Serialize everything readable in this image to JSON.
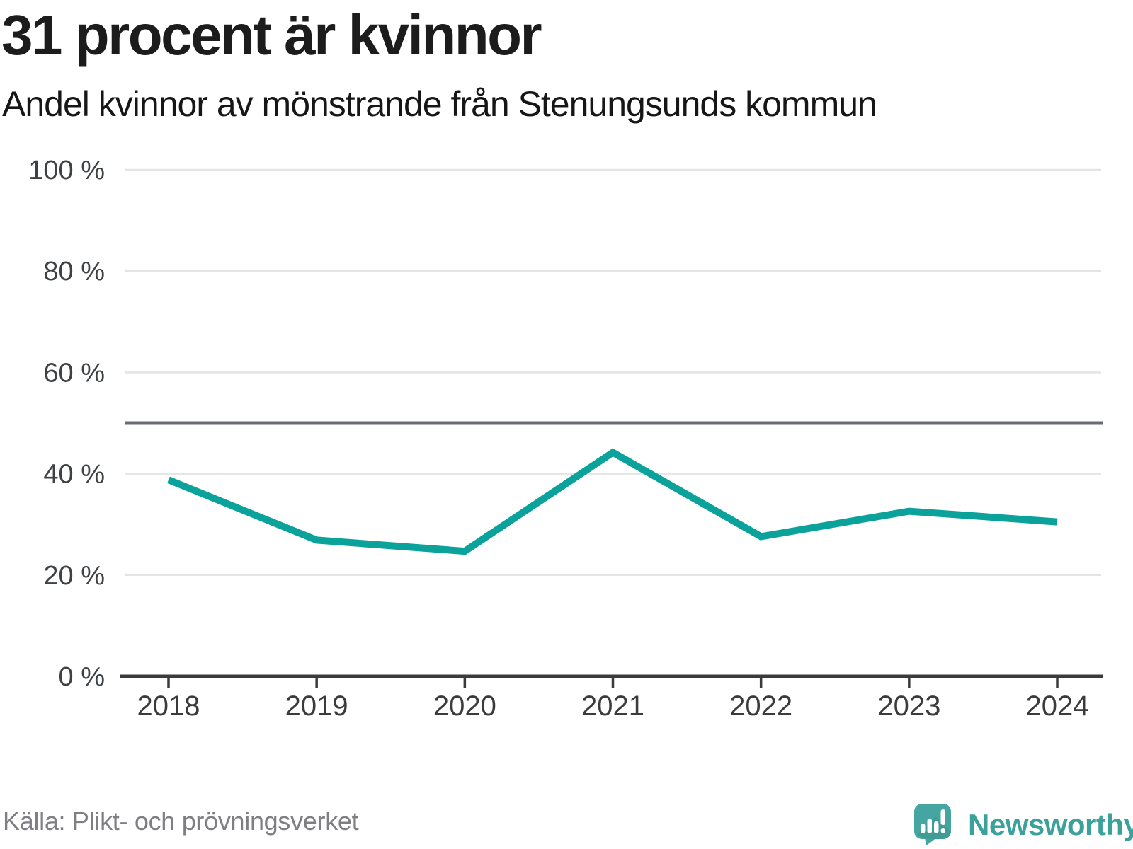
{
  "header": {
    "title": "31 procent är kvinnor",
    "subtitle": "Andel kvinnor av mönstrande från Stenungsunds kommun"
  },
  "footer": {
    "source": "Källa: Plikt- och prövningsverket",
    "brand": "Newsworthy"
  },
  "colors": {
    "line": "#0aa29a",
    "reference_line": "#696c74",
    "grid": "#e4e4e4",
    "axis": "#3b3b3b",
    "tick_label": "#3f4245",
    "logo_teal": "#45a6a1",
    "source_text": "#7f7f83"
  },
  "chart_data": {
    "type": "line",
    "title": "31 procent är kvinnor",
    "subtitle": "Andel kvinnor av mönstrande från Stenungsunds kommun",
    "x": [
      2018,
      2019,
      2020,
      2021,
      2022,
      2023,
      2024
    ],
    "x_tick_labels": [
      "2018",
      "2019",
      "2020",
      "2021",
      "2022",
      "2023",
      "2024"
    ],
    "series": [
      {
        "name": "Andel kvinnor av mönstrande",
        "values": [
          38.8,
          26.9,
          24.7,
          44.2,
          27.6,
          32.6,
          30.5
        ]
      }
    ],
    "xlabel": "",
    "ylabel": "",
    "ylim": [
      0,
      100
    ],
    "y_ticks": [
      0,
      20,
      40,
      60,
      80,
      100
    ],
    "y_tick_labels": [
      "0 %",
      "20 %",
      "40 %",
      "60 %",
      "80 %",
      "100 %"
    ],
    "reference_line": 50,
    "grid": true,
    "legend": false,
    "source": "Källa: Plikt- och prövningsverket"
  }
}
